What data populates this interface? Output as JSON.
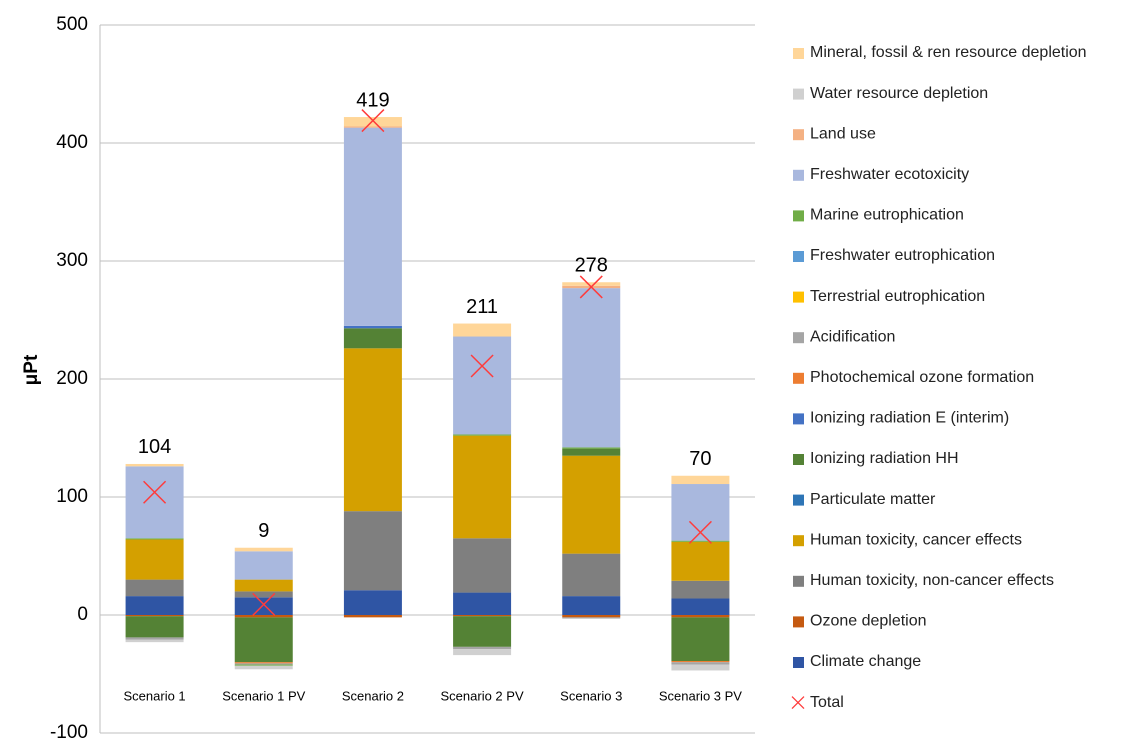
{
  "chart_data": {
    "type": "stacked_bar",
    "y_label": "μPt",
    "categories": [
      "Scenario 1",
      "Scenario 1 PV",
      "Scenario 2",
      "Scenario 2 PV",
      "Scenario 3",
      "Scenario 3 PV"
    ],
    "ylim": [
      -100,
      500
    ],
    "yticks": [
      -100,
      0,
      100,
      200,
      300,
      400,
      500
    ],
    "grid": true,
    "series": [
      {
        "name": "Climate change",
        "color": "#2f55a4",
        "values": [
          16,
          15,
          21,
          19,
          16,
          14
        ]
      },
      {
        "name": "Ozone depletion",
        "color": "#c55a11",
        "values": [
          -1,
          -2,
          -2,
          -1,
          -2,
          -2
        ]
      },
      {
        "name": "Human toxicity, non-cancer effects",
        "color": "#7f7f7f",
        "values": [
          14,
          5,
          67,
          46,
          36,
          15
        ]
      },
      {
        "name": "Human toxicity, cancer effects",
        "color": "#d4a000",
        "values": [
          34,
          10,
          138,
          87,
          83,
          33
        ]
      },
      {
        "name": "Particulate matter",
        "color": "#2e75b6",
        "values": [
          0,
          0,
          0,
          0,
          0,
          0
        ]
      },
      {
        "name": "Ionizing radiation HH",
        "color": "#548235",
        "values": [
          -18,
          -38,
          17,
          -26,
          6,
          -37
        ]
      },
      {
        "name": "Ionizing radiation E (interim)",
        "color": "#4472c4",
        "values": [
          0,
          0,
          2,
          0,
          0,
          0
        ]
      },
      {
        "name": "Photochemical ozone formation",
        "color": "#ed7d31",
        "values": [
          0,
          -1,
          0,
          0,
          0,
          -1
        ]
      },
      {
        "name": "Acidification",
        "color": "#a5a5a5",
        "values": [
          -2,
          -1,
          0,
          -2,
          -1,
          -2
        ]
      },
      {
        "name": "Terrestrial eutrophication",
        "color": "#ffc000",
        "values": [
          0,
          0,
          0,
          0,
          0,
          0
        ]
      },
      {
        "name": "Freshwater eutrophication",
        "color": "#5b9bd5",
        "values": [
          0,
          0,
          0,
          0,
          0,
          0
        ]
      },
      {
        "name": "Marine eutrophication",
        "color": "#70ad47",
        "values": [
          1,
          -1,
          0,
          1,
          1,
          1
        ]
      },
      {
        "name": "Freshwater ecotoxicity",
        "color": "#a9b8de",
        "values": [
          61,
          24,
          168,
          83,
          135,
          48
        ]
      },
      {
        "name": "Land use",
        "color": "#f4b183",
        "values": [
          0,
          0,
          1,
          0,
          2,
          0
        ]
      },
      {
        "name": "Water resource depletion",
        "color": "#d0d0d0",
        "values": [
          -2,
          -3,
          0,
          -5,
          0,
          -5
        ]
      },
      {
        "name": "Mineral, fossil & ren resource depletion",
        "color": "#ffd699",
        "values": [
          2,
          3,
          8,
          11,
          3,
          7
        ]
      }
    ],
    "total": {
      "name": "Total",
      "color": "#ff3b3b",
      "values": [
        104,
        9,
        419,
        211,
        278,
        70
      ]
    }
  }
}
